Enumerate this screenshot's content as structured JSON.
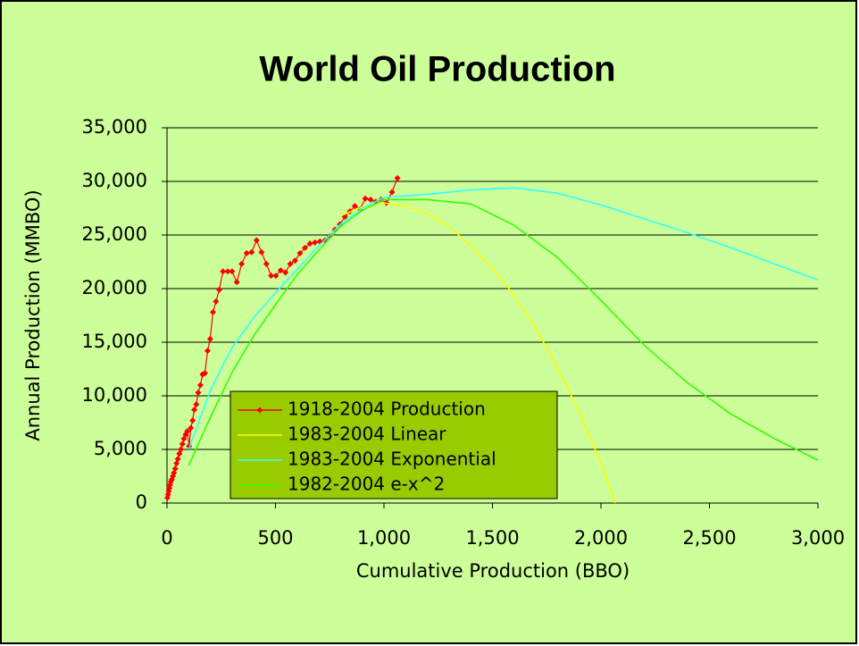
{
  "chart_data": {
    "type": "line",
    "title": "World Oil Production",
    "x_label": "Cumulative Production (BBO)",
    "y_label": "Annual Production (MMBO)",
    "xlim": [
      0,
      3000
    ],
    "ylim": [
      0,
      35000
    ],
    "xticks": [
      0,
      500,
      {
        "value": 1000,
        "label": "1,000"
      },
      {
        "value": 1500,
        "label": "1,500"
      },
      {
        "value": 2000,
        "label": "2,000"
      },
      {
        "value": 2500,
        "label": "2,500"
      },
      {
        "value": 3000,
        "label": "3,000"
      }
    ],
    "yticks": [
      0,
      {
        "value": 5000,
        "label": "5,000"
      },
      {
        "value": 10000,
        "label": "10,000"
      },
      {
        "value": 15000,
        "label": "15,000"
      },
      {
        "value": 20000,
        "label": "20,000"
      },
      {
        "value": 25000,
        "label": "25,000"
      },
      {
        "value": 30000,
        "label": "30,000"
      },
      {
        "value": 35000,
        "label": "35,000"
      }
    ],
    "grid": true,
    "legend": "bottom-left",
    "series": [
      {
        "name": "1918-2004 Production",
        "color": "#ff0000",
        "marker": "diamond",
        "x": [
          2,
          5,
          8,
          11,
          14,
          18,
          22,
          27,
          32,
          38,
          44,
          50,
          57,
          64,
          71,
          78,
          86,
          94,
          102,
          110,
          118,
          126,
          135,
          144,
          154,
          164,
          175,
          187,
          199,
          212,
          226,
          241,
          258,
          280,
          300,
          322,
          344,
          367,
          390,
          413,
          436,
          458,
          480,
          502,
          524,
          546,
          568,
          590,
          613,
          636,
          659,
          682,
          705,
          728,
          751,
          774,
          797,
          820,
          843,
          866,
          890,
          914,
          938,
          962,
          987,
          1012,
          1037,
          1062
        ],
        "values": [
          500,
          800,
          1100,
          1400,
          1700,
          2000,
          2200,
          2500,
          2800,
          3200,
          3700,
          4100,
          4600,
          5000,
          5500,
          6000,
          6400,
          6700,
          5300,
          7000,
          7700,
          8700,
          9200,
          10300,
          11000,
          12000,
          12100,
          14200,
          15300,
          17800,
          18800,
          19900,
          21600,
          21600,
          21600,
          20600,
          22300,
          23300,
          23400,
          24500,
          23400,
          22300,
          21200,
          21200,
          21700,
          21500,
          22300,
          22600,
          23300,
          23800,
          24200,
          24300,
          24400,
          24500,
          24900,
          25500,
          26000,
          26700,
          27200,
          27700,
          27400,
          28400,
          28300,
          28100,
          28300,
          28000,
          29000,
          30300
        ]
      },
      {
        "name": "1983-2004 Linear",
        "color": "#ffff00",
        "x": [
          800,
          900,
          1000,
          1100,
          1200,
          1300,
          1400,
          1500,
          1600,
          1700,
          1800,
          1900,
          2000,
          2065
        ],
        "values": [
          26800,
          27600,
          28000,
          27700,
          27000,
          25800,
          24000,
          21900,
          19400,
          16300,
          12600,
          8500,
          3700,
          0
        ]
      },
      {
        "name": "1983-2004 Exponential",
        "color": "#33ffff",
        "x": [
          100,
          200,
          300,
          400,
          500,
          600,
          700,
          800,
          900,
          1000,
          1200,
          1400,
          1600,
          1800,
          2000,
          2200,
          2400,
          2600,
          2800,
          3000
        ],
        "values": [
          5000,
          10500,
          14500,
          17300,
          19600,
          21800,
          24000,
          26000,
          27500,
          28500,
          28800,
          29200,
          29400,
          28900,
          27800,
          26500,
          25200,
          23800,
          22300,
          20800
        ]
      },
      {
        "name": "1982-2004 e-x^2",
        "color": "#33ff00",
        "x": [
          100,
          200,
          300,
          400,
          500,
          600,
          700,
          800,
          900,
          1000,
          1200,
          1400,
          1600,
          1800,
          2000,
          2200,
          2400,
          2600,
          2800,
          3000
        ],
        "values": [
          3500,
          8000,
          12200,
          15600,
          18500,
          21300,
          23600,
          25800,
          27300,
          28300,
          28300,
          27900,
          25900,
          22900,
          18900,
          14700,
          11200,
          8300,
          6000,
          4000
        ]
      }
    ]
  }
}
